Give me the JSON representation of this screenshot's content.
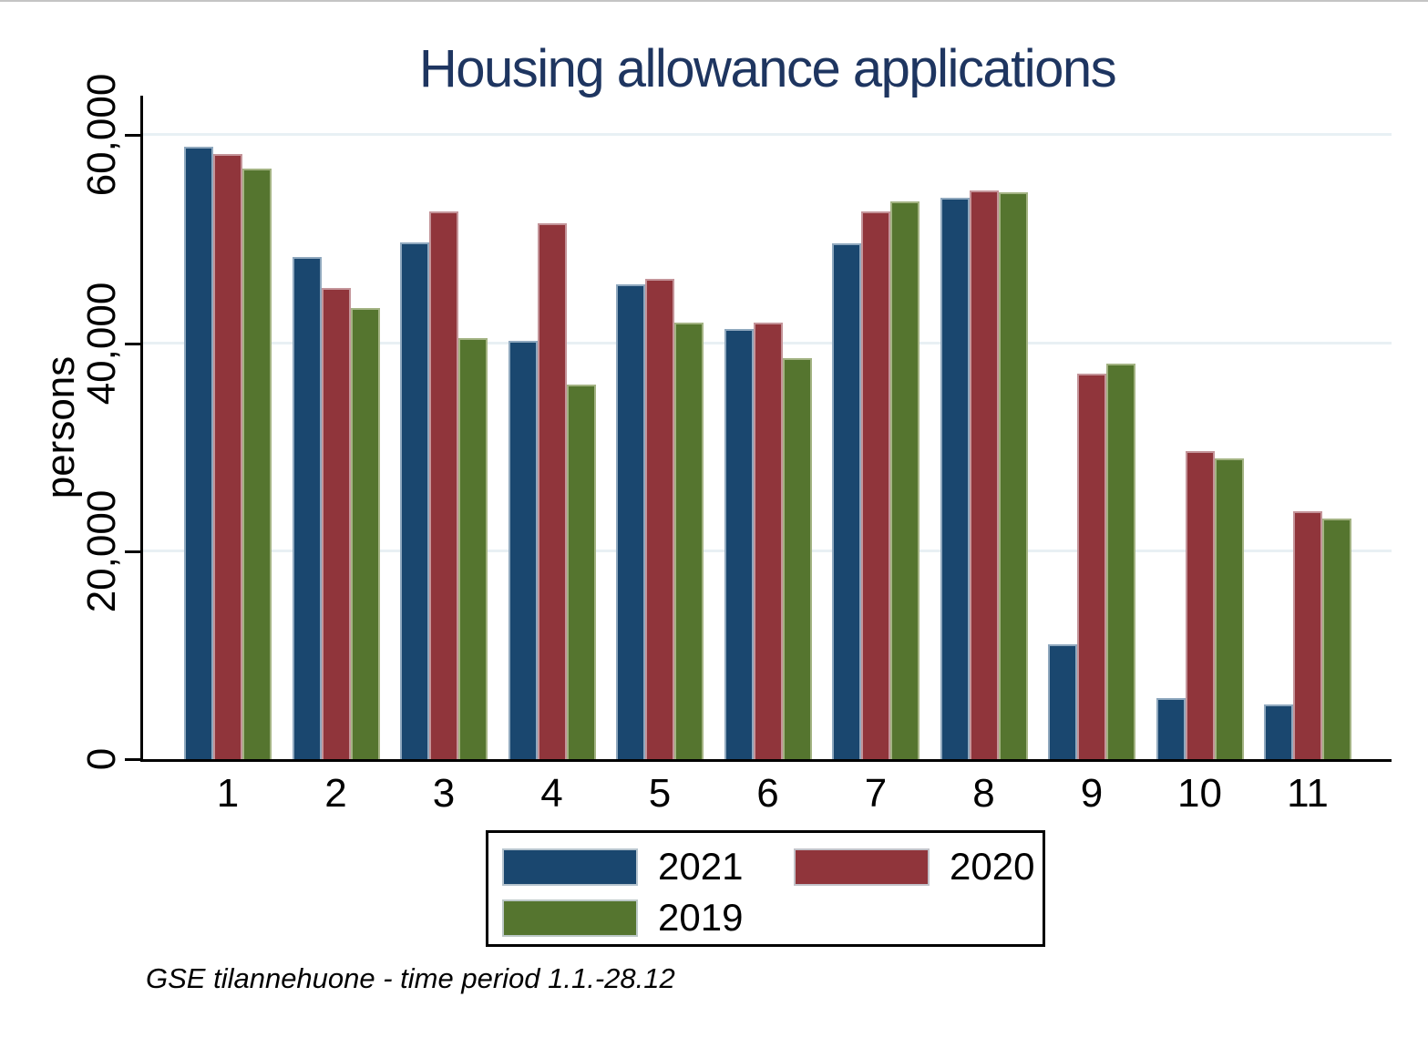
{
  "figure": {
    "title": "Housing allowance applications",
    "footnote": "GSE tilannehuone - time period 1.1.-28.12"
  },
  "chart_data": {
    "type": "bar",
    "title": "Housing allowance applications",
    "xlabel": "",
    "ylabel": "persons",
    "categories": [
      "1",
      "2",
      "3",
      "4",
      "5",
      "6",
      "7",
      "8",
      "9",
      "10",
      "11"
    ],
    "series": [
      {
        "name": "2021",
        "color": "#1a476f",
        "values": [
          58900,
          48300,
          49700,
          40200,
          45700,
          41400,
          49600,
          54000,
          11000,
          5900,
          5300
        ]
      },
      {
        "name": "2020",
        "color": "#90353b",
        "values": [
          58200,
          45300,
          52700,
          51500,
          46200,
          42000,
          52700,
          54700,
          37100,
          29600,
          23800
        ]
      },
      {
        "name": "2019",
        "color": "#55752f",
        "values": [
          56800,
          43400,
          40500,
          36000,
          42000,
          38600,
          53600,
          54500,
          38000,
          28900,
          23100
        ]
      }
    ],
    "ylim": [
      0,
      63000
    ],
    "yticks": [
      0,
      20000,
      40000,
      60000
    ],
    "ytick_labels": [
      "0",
      "20,000",
      "40,000",
      "60,000"
    ],
    "grid": true,
    "gridline_color": "#e8f0f4",
    "legend_position": "bottom",
    "legend_entries": [
      "2021",
      "2020",
      "2019"
    ]
  }
}
